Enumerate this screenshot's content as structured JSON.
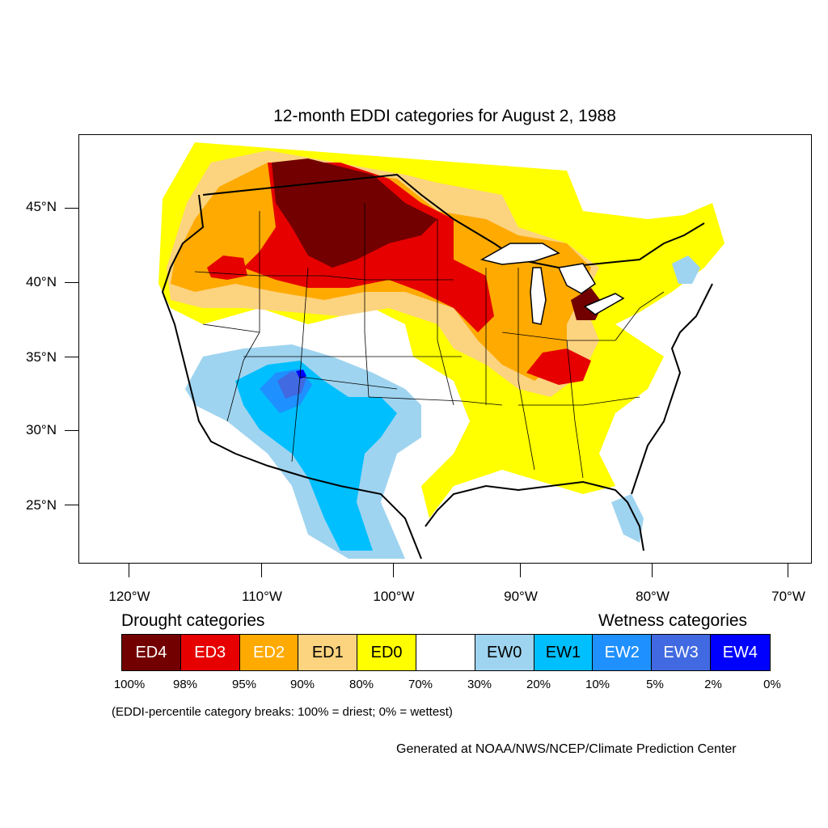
{
  "title": "12-month EDDI categories for August 2, 1988",
  "axes": {
    "lat_labels": [
      "45°N",
      "40°N",
      "35°N",
      "30°N",
      "25°N"
    ],
    "lon_labels": [
      "120°W",
      "110°W",
      "100°W",
      "90°W",
      "80°W",
      "70°W"
    ]
  },
  "legend": {
    "drought_heading": "Drought categories",
    "wetness_heading": "Wetness categories",
    "categories": [
      {
        "label": "ED4",
        "color": "#730000",
        "text_color": "#ffffff"
      },
      {
        "label": "ED3",
        "color": "#e60000",
        "text_color": "#ffffff"
      },
      {
        "label": "ED2",
        "color": "#ffaa00",
        "text_color": "#ffffff"
      },
      {
        "label": "ED1",
        "color": "#fcd37f",
        "text_color": "#000000"
      },
      {
        "label": "ED0",
        "color": "#ffff00",
        "text_color": "#000000"
      },
      {
        "label": "",
        "color": "#ffffff",
        "text_color": "#000000"
      },
      {
        "label": "EW0",
        "color": "#9fd4f0",
        "text_color": "#000000"
      },
      {
        "label": "EW1",
        "color": "#00bfff",
        "text_color": "#000000"
      },
      {
        "label": "EW2",
        "color": "#1e90ff",
        "text_color": "#ffffff"
      },
      {
        "label": "EW3",
        "color": "#4169e1",
        "text_color": "#ffffff"
      },
      {
        "label": "EW4",
        "color": "#0000ff",
        "text_color": "#ffffff"
      }
    ],
    "breaks": [
      "100%",
      "98%",
      "95%",
      "90%",
      "80%",
      "70%",
      "30%",
      "20%",
      "10%",
      "5%",
      "2%",
      "0%"
    ],
    "note": "(EDDI-percentile category breaks: 100% = driest; 0% = wettest)"
  },
  "credit": "Generated at NOAA/NWS/NCEP/Climate Prediction Center"
}
